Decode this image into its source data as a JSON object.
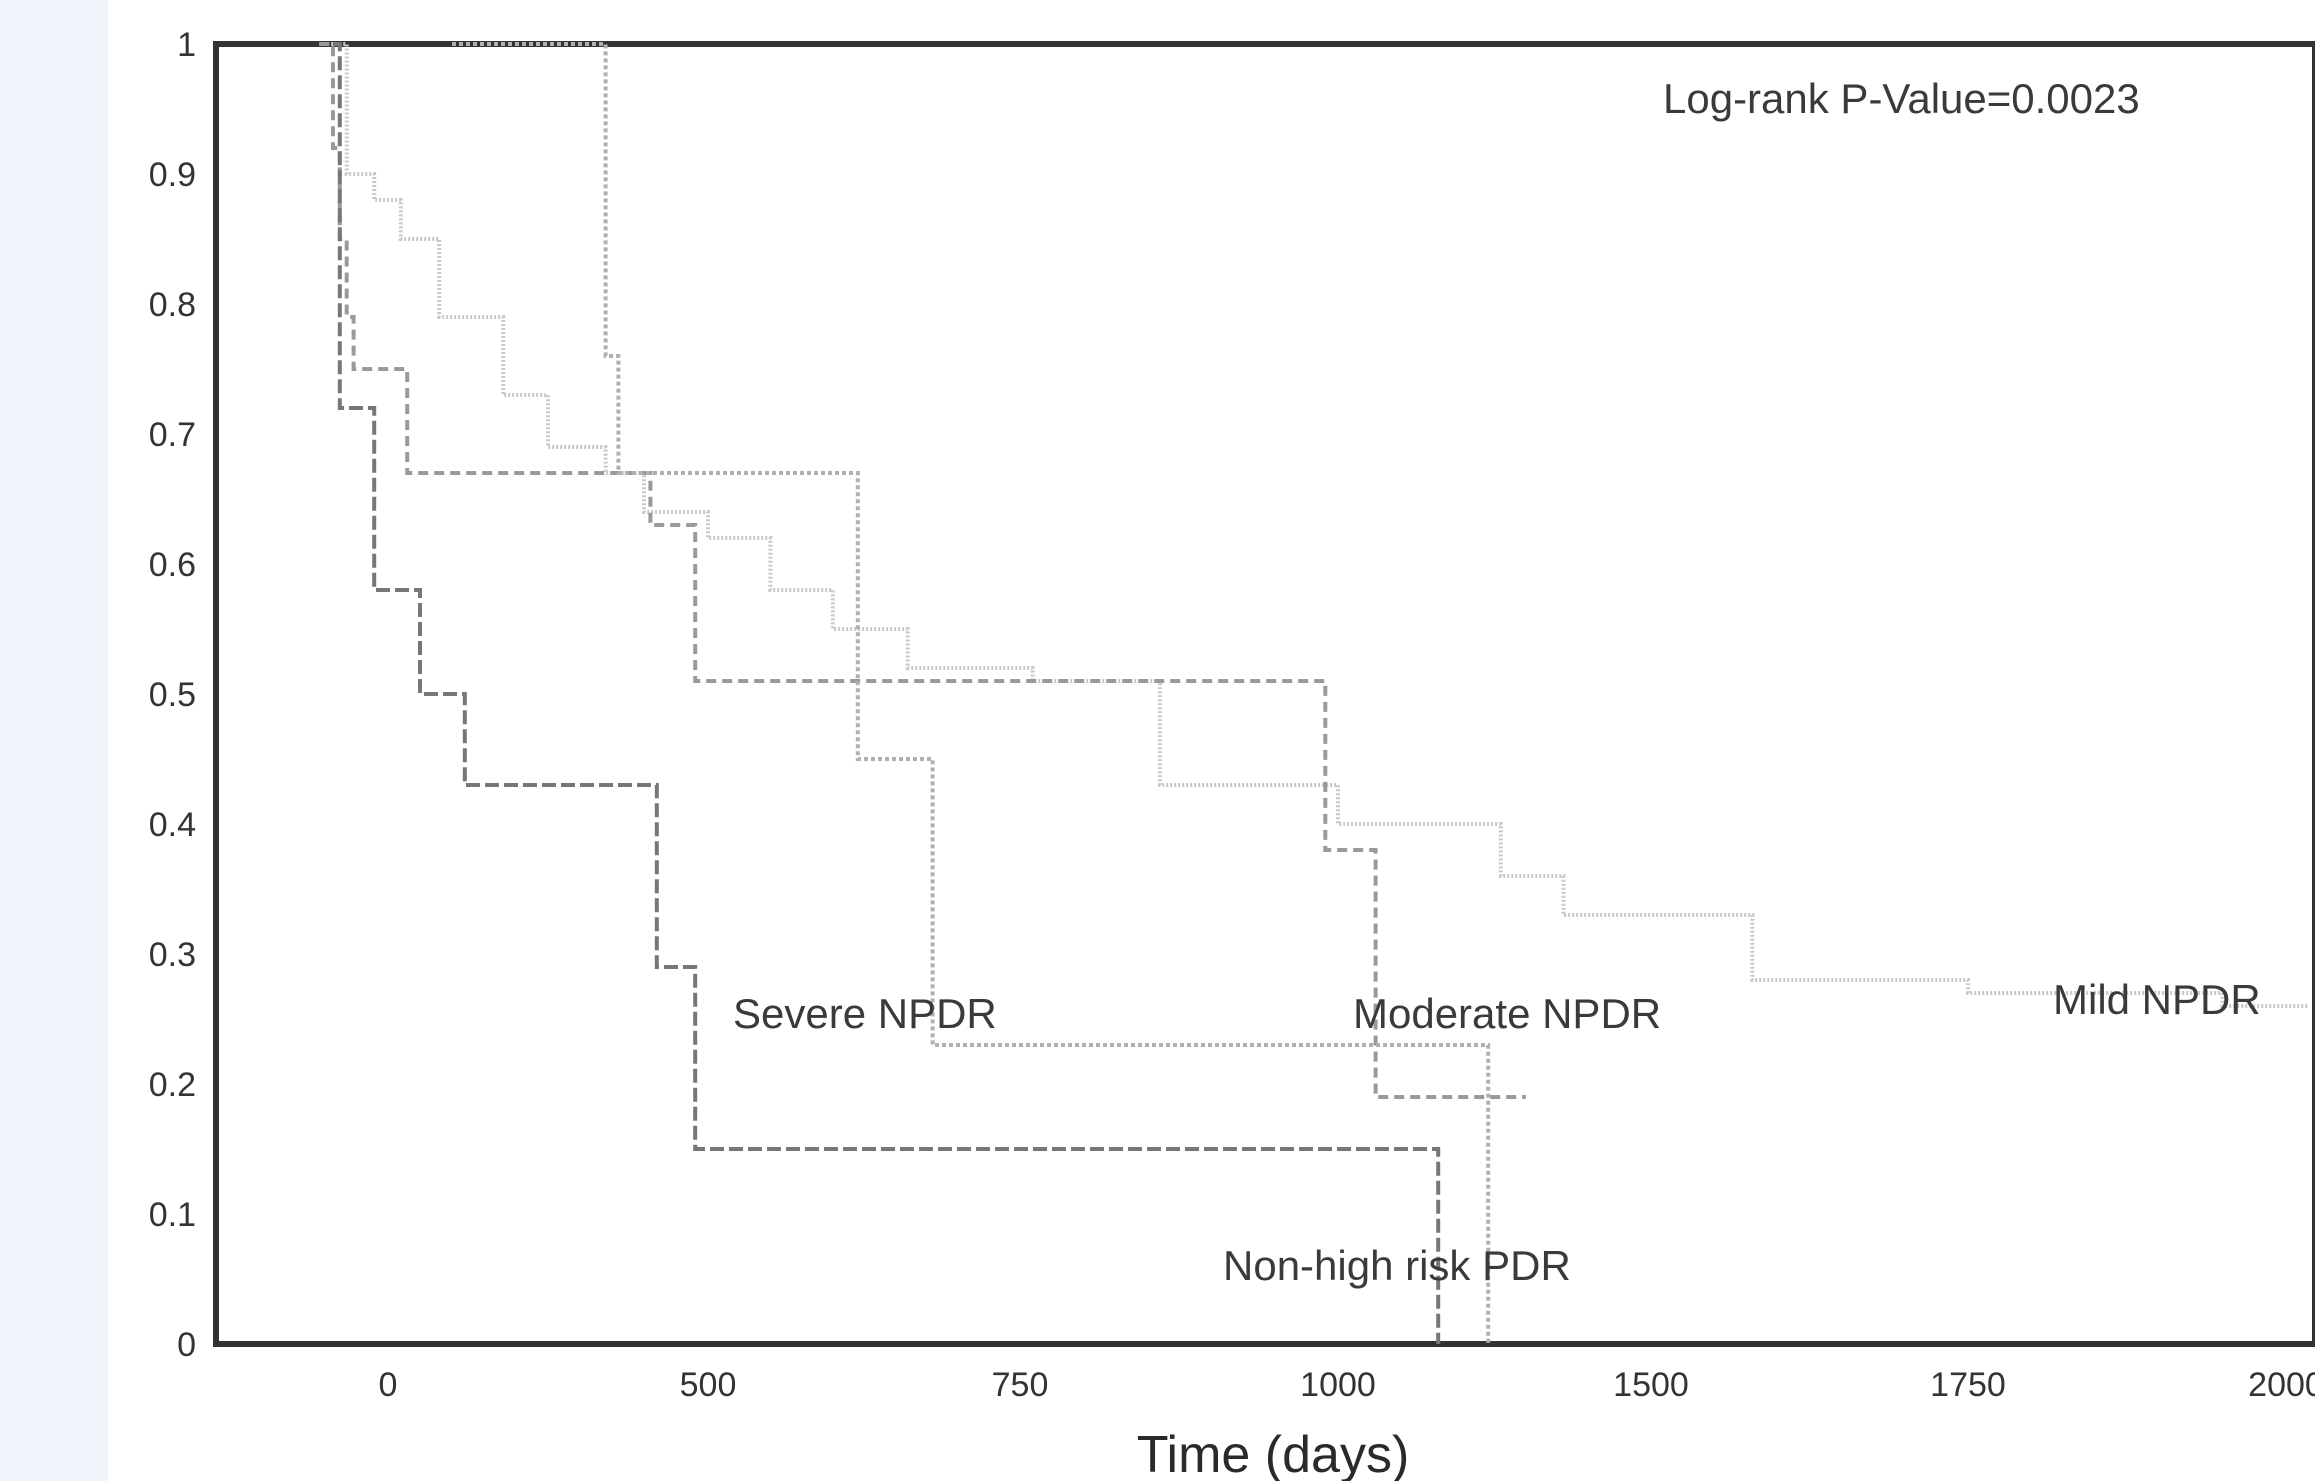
{
  "chart_data": {
    "type": "line",
    "title": "",
    "xlabel": "Time (days)",
    "ylabel": "",
    "x_ticks": [
      "0",
      "500",
      "750",
      "1000",
      "1500",
      "1750",
      "2000"
    ],
    "y_ticks": [
      "0",
      "0.1",
      "0.2",
      "0.3",
      "0.4",
      "0.5",
      "0.6",
      "0.7",
      "0.8",
      "0.9",
      "1"
    ],
    "ylim": [
      0,
      1
    ],
    "grid": false,
    "legend": "none",
    "annotation": "Log-rank P-Value=0.0023",
    "series": [
      {
        "name": "Mild NPDR",
        "color": "#c8c8c8",
        "dash": "2,2",
        "x": [
          -100,
          -60,
          -20,
          20,
          80,
          180,
          250,
          340,
          400,
          500,
          550,
          600,
          660,
          760,
          860,
          1000,
          1260,
          1360,
          1580,
          1750,
          1950,
          2150
        ],
        "y": [
          1.0,
          0.9,
          0.88,
          0.85,
          0.79,
          0.73,
          0.69,
          0.67,
          0.64,
          0.62,
          0.58,
          0.55,
          0.52,
          0.51,
          0.43,
          0.4,
          0.36,
          0.33,
          0.28,
          0.27,
          0.26,
          0.26
        ]
      },
      {
        "name": "Moderate NPDR",
        "color": "#9a9a9a",
        "dash": "10,6",
        "x": [
          -100,
          -80,
          -70,
          -60,
          -50,
          30,
          410,
          480,
          560,
          990,
          1060,
          1300
        ],
        "y": [
          1.0,
          0.92,
          0.85,
          0.79,
          0.75,
          0.67,
          0.63,
          0.51,
          0.51,
          0.38,
          0.19,
          0.19
        ],
        "end_x": 1300
      },
      {
        "name": "Severe NPDR",
        "color": "#b0b0b0",
        "dash": "4,3",
        "x": [
          100,
          340,
          360,
          620,
          680,
          1110,
          1240
        ],
        "y": [
          1.0,
          0.76,
          0.67,
          0.45,
          0.23,
          0.23,
          0.0
        ],
        "end_x": 1240
      },
      {
        "name": "Non-high risk PDR",
        "color": "#777777",
        "dash": "14,5",
        "x": [
          -80,
          -70,
          -20,
          50,
          120,
          420,
          480,
          590,
          1000,
          1160
        ],
        "y": [
          1.0,
          0.72,
          0.58,
          0.5,
          0.43,
          0.29,
          0.15,
          0.15,
          0.15,
          0.0
        ],
        "end_x": 1160
      }
    ]
  }
}
